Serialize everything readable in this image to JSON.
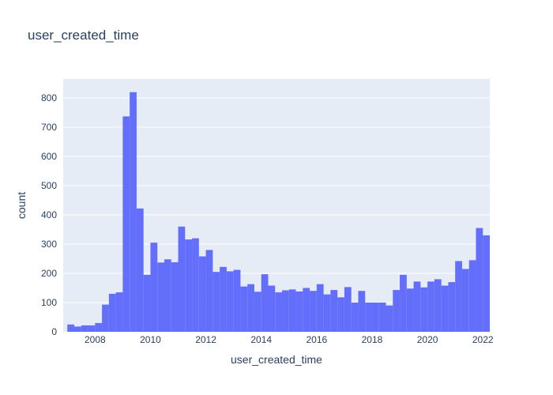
{
  "chart_data": {
    "type": "bar",
    "subtype": "histogram",
    "title": "user_created_time",
    "xlabel": "user_created_time",
    "ylabel": "count",
    "xlim": [
      2006.85,
      2022.25
    ],
    "ylim": [
      0,
      865
    ],
    "bin_width_years": 0.25,
    "bin_start": 2007.0,
    "x_ticks": [
      "2008",
      "2010",
      "2012",
      "2014",
      "2016",
      "2018",
      "2020",
      "2022"
    ],
    "y_ticks": [
      "0",
      "100",
      "200",
      "300",
      "400",
      "500",
      "600",
      "700",
      "800"
    ],
    "values": [
      25,
      18,
      22,
      22,
      30,
      93,
      130,
      135,
      737,
      820,
      422,
      195,
      305,
      237,
      248,
      238,
      360,
      316,
      320,
      258,
      280,
      205,
      222,
      207,
      212,
      155,
      163,
      137,
      197,
      158,
      135,
      142,
      145,
      138,
      150,
      140,
      163,
      128,
      143,
      118,
      153,
      100,
      140,
      100,
      100,
      100,
      90,
      143,
      195,
      148,
      172,
      152,
      172,
      180,
      158,
      170,
      242,
      215,
      245,
      355,
      330
    ],
    "bar_color": "#636efa",
    "background_color": "#e5ecf6",
    "grid": true
  }
}
